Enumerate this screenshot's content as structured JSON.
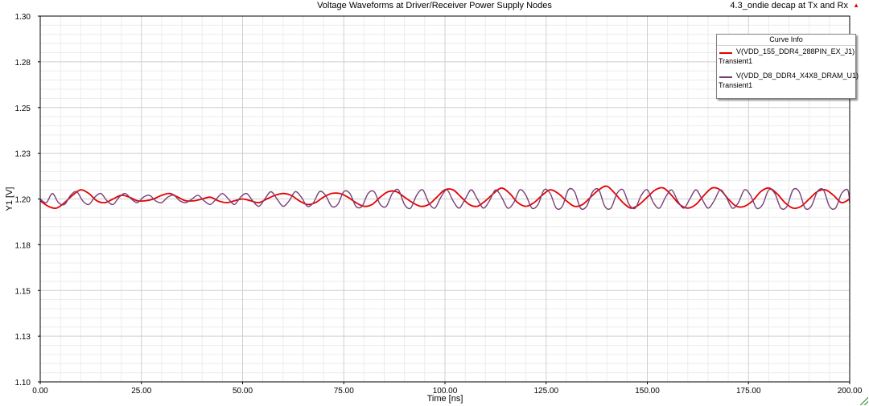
{
  "title": "Voltage Waveforms at Driver/Receiver Power Supply Nodes",
  "project_label": "4.3_ondie decap at Tx and Rx",
  "project_marker": "▲",
  "legend": {
    "header": "Curve Info",
    "entries": [
      {
        "name": "V(VDD_155_DDR4_288PIN_EX_J1)",
        "sub": "Transient1",
        "color": "#e60000"
      },
      {
        "name": "V(VDD_D8_DDR4_X4X8_DRAM_U1)",
        "sub": "Transient1",
        "color": "#7a3f78"
      }
    ]
  },
  "chart_data": {
    "type": "line",
    "xlabel": "Time [ns]",
    "ylabel": "Y1 [V]",
    "xlim": [
      0,
      200
    ],
    "ylim": [
      1.1,
      1.3
    ],
    "xticks": [
      "0.00",
      "25.00",
      "50.00",
      "75.00",
      "100.00",
      "125.00",
      "150.00",
      "175.00",
      "200.00"
    ],
    "yticks": [
      "1.10",
      "1.13",
      "1.15",
      "1.18",
      "1.20",
      "1.23",
      "1.25",
      "1.28",
      "1.30"
    ],
    "grid": true,
    "legend_position": "top-right",
    "series": [
      {
        "name": "V(VDD_155_DDR4_288PIN_EX_J1)",
        "color": "#e60000",
        "x": [
          0,
          2,
          4,
          6,
          8,
          10,
          12,
          14,
          16,
          18,
          20,
          22,
          24,
          26,
          28,
          30,
          32,
          34,
          36,
          38,
          40,
          42,
          44,
          46,
          48,
          50,
          52,
          54,
          56,
          58,
          60,
          62,
          64,
          66,
          68,
          70,
          72,
          74,
          76,
          78,
          80,
          82,
          84,
          86,
          88,
          90,
          92,
          94,
          96,
          98,
          100,
          102,
          104,
          106,
          108,
          110,
          112,
          114,
          116,
          118,
          120,
          122,
          124,
          126,
          128,
          130,
          132,
          134,
          136,
          138,
          140,
          142,
          144,
          146,
          148,
          150,
          152,
          154,
          156,
          158,
          160,
          162,
          164,
          166,
          168,
          170,
          172,
          174,
          176,
          178,
          180,
          182,
          184,
          186,
          188,
          190,
          192,
          194,
          196,
          198,
          200
        ],
        "y": [
          1.199,
          1.196,
          1.195,
          1.198,
          1.202,
          1.205,
          1.203,
          1.199,
          1.198,
          1.2,
          1.202,
          1.201,
          1.199,
          1.199,
          1.2,
          1.202,
          1.203,
          1.201,
          1.199,
          1.199,
          1.2,
          1.201,
          1.199,
          1.198,
          1.199,
          1.2,
          1.199,
          1.198,
          1.2,
          1.202,
          1.203,
          1.202,
          1.199,
          1.197,
          1.198,
          1.201,
          1.203,
          1.203,
          1.201,
          1.198,
          1.196,
          1.197,
          1.201,
          1.204,
          1.204,
          1.201,
          1.198,
          1.196,
          1.197,
          1.201,
          1.205,
          1.205,
          1.201,
          1.197,
          1.196,
          1.199,
          1.203,
          1.206,
          1.203,
          1.198,
          1.196,
          1.198,
          1.202,
          1.205,
          1.203,
          1.199,
          1.196,
          1.197,
          1.201,
          1.205,
          1.207,
          1.203,
          1.198,
          1.195,
          1.197,
          1.201,
          1.205,
          1.206,
          1.202,
          1.197,
          1.195,
          1.197,
          1.202,
          1.206,
          1.205,
          1.2,
          1.196,
          1.196,
          1.199,
          1.204,
          1.206,
          1.203,
          1.198,
          1.195,
          1.196,
          1.2,
          1.204,
          1.205,
          1.202,
          1.198,
          1.2
        ]
      },
      {
        "name": "V(VDD_D8_DDR4_X4X8_DRAM_U1)",
        "color": "#7a3f78",
        "x": [
          0,
          1.5,
          3,
          4.5,
          6,
          7.5,
          9,
          10.5,
          12,
          13.5,
          15,
          16.5,
          18,
          19.5,
          21,
          22.5,
          24,
          25.5,
          27,
          28.5,
          30,
          31.5,
          33,
          34.5,
          36,
          37.5,
          39,
          40.5,
          42,
          43.5,
          45,
          46.5,
          48,
          49.5,
          51,
          52.5,
          54,
          55.5,
          57,
          58.5,
          60,
          61.5,
          63,
          64.5,
          66,
          67.5,
          69,
          70.5,
          72,
          73.5,
          75,
          76.5,
          78,
          79.5,
          81,
          82.5,
          84,
          85.5,
          87,
          88.5,
          90,
          91.5,
          93,
          94.5,
          96,
          97.5,
          99,
          100.5,
          102,
          103.5,
          105,
          106.5,
          108,
          109.5,
          111,
          112.5,
          114,
          115.5,
          117,
          118.5,
          120,
          121.5,
          123,
          124.5,
          126,
          127.5,
          129,
          130.5,
          132,
          133.5,
          135,
          136.5,
          138,
          139.5,
          141,
          142.5,
          144,
          145.5,
          147,
          148.5,
          150,
          151.5,
          153,
          154.5,
          156,
          157.5,
          159,
          160.5,
          162,
          163.5,
          165,
          166.5,
          168,
          169.5,
          171,
          172.5,
          174,
          175.5,
          177,
          178.5,
          180,
          181.5,
          183,
          184.5,
          186,
          187.5,
          189,
          190.5,
          192,
          193.5,
          195,
          196.5,
          198,
          199.5,
          200
        ],
        "y": [
          1.2,
          1.198,
          1.203,
          1.198,
          1.197,
          1.202,
          1.204,
          1.199,
          1.197,
          1.201,
          1.203,
          1.199,
          1.197,
          1.201,
          1.203,
          1.2,
          1.198,
          1.201,
          1.202,
          1.199,
          1.198,
          1.201,
          1.202,
          1.199,
          1.198,
          1.2,
          1.202,
          1.199,
          1.197,
          1.2,
          1.203,
          1.2,
          1.197,
          1.201,
          1.203,
          1.199,
          1.196,
          1.2,
          1.204,
          1.2,
          1.196,
          1.199,
          1.204,
          1.201,
          1.196,
          1.198,
          1.204,
          1.202,
          1.196,
          1.197,
          1.204,
          1.203,
          1.196,
          1.196,
          1.203,
          1.204,
          1.197,
          1.196,
          1.203,
          1.205,
          1.197,
          1.195,
          1.202,
          1.205,
          1.198,
          1.195,
          1.201,
          1.205,
          1.199,
          1.195,
          1.2,
          1.205,
          1.2,
          1.195,
          1.199,
          1.205,
          1.201,
          1.195,
          1.198,
          1.205,
          1.202,
          1.195,
          1.197,
          1.205,
          1.203,
          1.195,
          1.196,
          1.205,
          1.204,
          1.195,
          1.196,
          1.204,
          1.205,
          1.196,
          1.195,
          1.203,
          1.205,
          1.197,
          1.195,
          1.202,
          1.205,
          1.198,
          1.195,
          1.201,
          1.205,
          1.199,
          1.195,
          1.2,
          1.205,
          1.2,
          1.195,
          1.199,
          1.205,
          1.201,
          1.195,
          1.198,
          1.205,
          1.202,
          1.195,
          1.197,
          1.205,
          1.203,
          1.195,
          1.196,
          1.205,
          1.204,
          1.195,
          1.196,
          1.204,
          1.205,
          1.196,
          1.195,
          1.203,
          1.205,
          1.198
        ]
      }
    ]
  }
}
